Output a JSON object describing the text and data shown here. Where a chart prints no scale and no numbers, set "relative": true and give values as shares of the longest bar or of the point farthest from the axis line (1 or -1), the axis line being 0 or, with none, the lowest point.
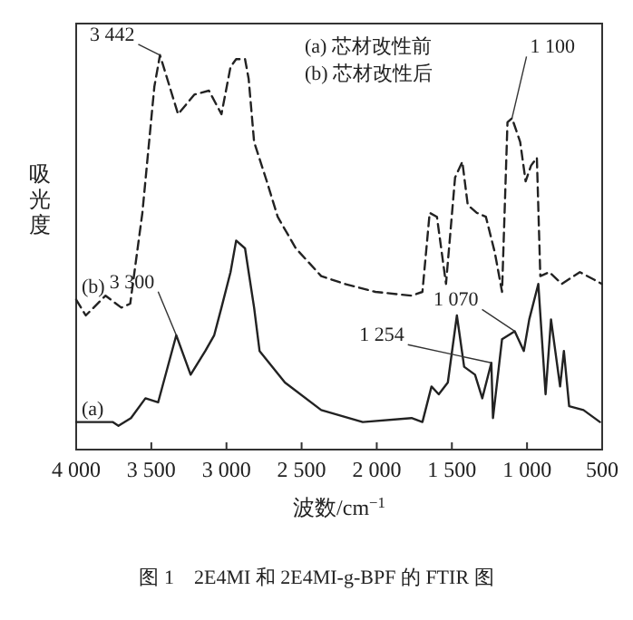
{
  "chart_data": {
    "type": "line",
    "relative": true,
    "xlabel": "波数/cm$^{−1}$",
    "ylabel": "吸光度",
    "xlim": [
      4000,
      500
    ],
    "xticks": [
      {
        "value": 4000,
        "label": "4 000"
      },
      {
        "value": 3500,
        "label": "3 500"
      },
      {
        "value": 3000,
        "label": "3 000"
      },
      {
        "value": 2500,
        "label": "2 500"
      },
      {
        "value": 2000,
        "label": "2 000"
      },
      {
        "value": 1500,
        "label": "1 500"
      },
      {
        "value": 1000,
        "label": "1 000"
      },
      500
    ],
    "series": [
      {
        "name": "(a)",
        "color": "#222222",
        "line_style": "solid",
        "x": [
          4000,
          3757,
          3719,
          3635,
          3539,
          3454,
          3334,
          3238,
          3141,
          3081,
          3033,
          2973,
          2936,
          2876,
          2852,
          2816,
          2780,
          2611,
          2370,
          2093,
          1768,
          1696,
          1636,
          1587,
          1527,
          1467,
          1418,
          1346,
          1298,
          1238,
          1226,
          1166,
          1082,
          1021,
          985,
          925,
          876,
          840,
          780,
          755,
          720,
          624,
          515
        ],
        "values": [
          0.07,
          0.07,
          0.06,
          0.08,
          0.13,
          0.12,
          0.29,
          0.19,
          0.25,
          0.29,
          0.36,
          0.45,
          0.53,
          0.51,
          0.45,
          0.36,
          0.25,
          0.17,
          0.1,
          0.07,
          0.08,
          0.07,
          0.16,
          0.14,
          0.17,
          0.34,
          0.21,
          0.19,
          0.13,
          0.22,
          0.08,
          0.28,
          0.3,
          0.25,
          0.33,
          0.42,
          0.14,
          0.33,
          0.16,
          0.25,
          0.11,
          0.1,
          0.07
        ]
      },
      {
        "name": "(b)",
        "color": "#222222",
        "line_style": "dashed",
        "x": [
          4000,
          3936,
          3804,
          3700,
          3640,
          3560,
          3480,
          3442,
          3322,
          3214,
          3117,
          3033,
          2973,
          2936,
          2876,
          2852,
          2816,
          2731,
          2659,
          2539,
          2370,
          2213,
          2009,
          1768,
          1696,
          1648,
          1599,
          1539,
          1479,
          1430,
          1394,
          1334,
          1274,
          1214,
          1166,
          1130,
          1100,
          1045,
          1009,
          973,
          935,
          912,
          852,
          768,
          648,
          551,
          503
        ],
        "values": [
          0.38,
          0.34,
          0.39,
          0.36,
          0.37,
          0.6,
          0.92,
          1.0,
          0.85,
          0.9,
          0.91,
          0.85,
          0.97,
          0.99,
          0.99,
          0.94,
          0.78,
          0.68,
          0.59,
          0.51,
          0.44,
          0.42,
          0.4,
          0.39,
          0.4,
          0.6,
          0.59,
          0.42,
          0.69,
          0.73,
          0.62,
          0.6,
          0.59,
          0.5,
          0.4,
          0.83,
          0.84,
          0.78,
          0.68,
          0.72,
          0.74,
          0.44,
          0.45,
          0.42,
          0.45,
          0.43,
          0.42
        ]
      }
    ],
    "annotations": [
      {
        "text": "3 442",
        "x": 3442,
        "y": 1.0
      },
      {
        "text": "3 300",
        "x": 3334,
        "y": 0.29
      },
      {
        "text": "1 254",
        "x": 1238,
        "y": 0.22
      },
      {
        "text": "1 070",
        "x": 1082,
        "y": 0.3
      },
      {
        "text": "1 100",
        "x": 1100,
        "y": 0.84
      },
      "(a) 芯材改性前",
      "(b) 芯材改性后",
      "图 1　2E4MI 和 2E4MI-g-BPF 的 FTIR 图"
    ]
  }
}
